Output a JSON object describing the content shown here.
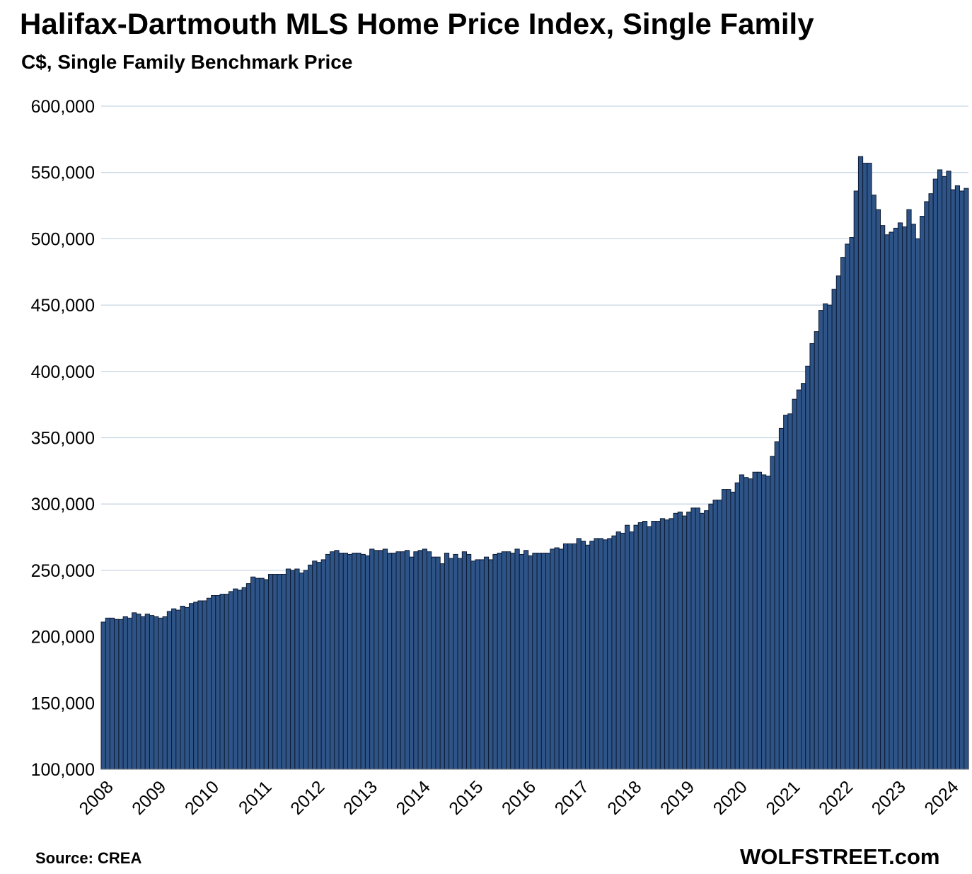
{
  "title": "Halifax-Dartmouth MLS Home Price Index, Single Family",
  "subtitle": "C$, Single Family Benchmark Price",
  "source": "Source: CREA",
  "brand": "WOLFSTREET.com",
  "colors": {
    "bar_fill": "#2E5487",
    "bar_edge": "#0d1b33",
    "grid": "#c9d6e3"
  },
  "chart_data": {
    "type": "bar",
    "ylim": [
      100000,
      600000
    ],
    "yticks": [
      100000,
      150000,
      200000,
      250000,
      300000,
      350000,
      400000,
      450000,
      500000,
      550000,
      600000
    ],
    "ytick_labels": [
      "100,000",
      "150,000",
      "200,000",
      "250,000",
      "300,000",
      "350,000",
      "400,000",
      "450,000",
      "500,000",
      "550,000",
      "600,000"
    ],
    "xtick_labels": [
      "2008",
      "2009",
      "2010",
      "2011",
      "2012",
      "2013",
      "2014",
      "2015",
      "2016",
      "2017",
      "2018",
      "2019",
      "2020",
      "2021",
      "2022",
      "2023",
      "2024"
    ],
    "start": "2008-01",
    "frequency": "monthly",
    "grid": true,
    "values": [
      211000,
      214000,
      214000,
      213000,
      213000,
      215000,
      214000,
      218000,
      217000,
      215000,
      217000,
      216000,
      215000,
      214000,
      215000,
      219000,
      221000,
      220000,
      223000,
      222000,
      225000,
      226000,
      227000,
      227000,
      229000,
      231000,
      231000,
      232000,
      232000,
      234000,
      236000,
      235000,
      237000,
      240000,
      245000,
      244000,
      244000,
      243000,
      247000,
      247000,
      247000,
      247000,
      251000,
      250000,
      251000,
      248000,
      250000,
      254000,
      257000,
      256000,
      258000,
      262000,
      264000,
      265000,
      263000,
      263000,
      262000,
      263000,
      263000,
      262000,
      261000,
      266000,
      265000,
      265000,
      266000,
      263000,
      263000,
      264000,
      264000,
      265000,
      260000,
      264000,
      265000,
      266000,
      264000,
      260000,
      260000,
      255000,
      263000,
      259000,
      262000,
      259000,
      264000,
      262000,
      257000,
      258000,
      258000,
      260000,
      258000,
      262000,
      263000,
      264000,
      264000,
      263000,
      266000,
      262000,
      265000,
      261000,
      263000,
      263000,
      263000,
      263000,
      266000,
      267000,
      266000,
      270000,
      270000,
      270000,
      274000,
      272000,
      269000,
      272000,
      274000,
      274000,
      273000,
      274000,
      276000,
      279000,
      278000,
      284000,
      279000,
      284000,
      286000,
      287000,
      283000,
      287000,
      287000,
      289000,
      288000,
      289000,
      293000,
      294000,
      291000,
      294000,
      297000,
      297000,
      293000,
      295000,
      300000,
      303000,
      303000,
      311000,
      311000,
      309000,
      316000,
      322000,
      320000,
      319000,
      324000,
      324000,
      322000,
      321000,
      336000,
      347000,
      357000,
      367000,
      368000,
      379000,
      386000,
      391000,
      404000,
      421000,
      430000,
      446000,
      451000,
      450000,
      462000,
      472000,
      486000,
      496000,
      501000,
      536000,
      562000,
      557000,
      557000,
      533000,
      522000,
      510000,
      503000,
      505000,
      508000,
      512000,
      509000,
      522000,
      511000,
      500000,
      517000,
      528000,
      534000,
      545000,
      552000,
      547000,
      551000,
      537000,
      540000,
      536000,
      538000
    ]
  }
}
